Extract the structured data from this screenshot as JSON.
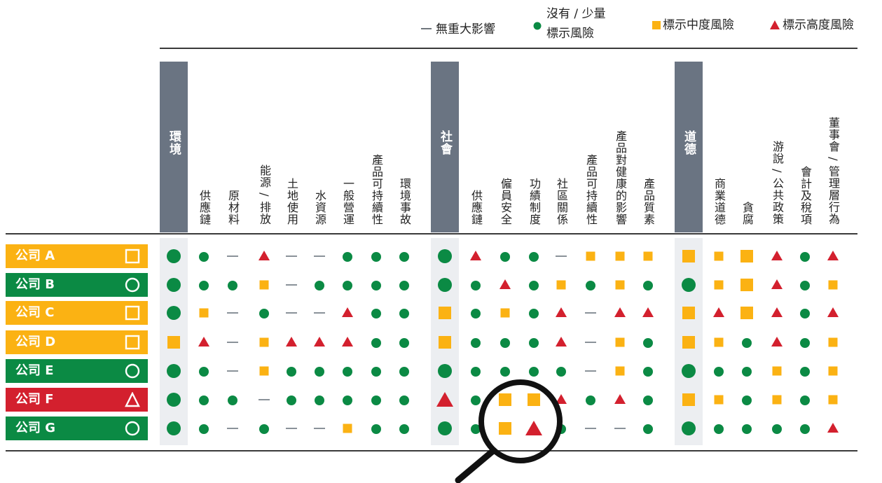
{
  "colors": {
    "green": "#0b8a44",
    "amber": "#fbb213",
    "red": "#d3202e",
    "dash": "#8a9299",
    "category": "#6a7482",
    "category_light": "#eceef1"
  },
  "legend": {
    "none_label": "無重大影響",
    "low_label_line1": "沒有 / 少量",
    "low_label_line2": "標示風險",
    "medium_label": "標示中度風險",
    "high_label": "標示高度風險"
  },
  "columns": [
    {
      "label": "環境",
      "category": true
    },
    {
      "label": "供應鏈"
    },
    {
      "label": "原材料"
    },
    {
      "label": "能源 / 排放"
    },
    {
      "label": "土地使用"
    },
    {
      "label": "水資源"
    },
    {
      "label": "一般營運"
    },
    {
      "label": "產品可持續性"
    },
    {
      "label": "環境事故"
    },
    {
      "label": "社會",
      "category": true
    },
    {
      "label": "供應鏈"
    },
    {
      "label": "僱員安全"
    },
    {
      "label": "功績制度"
    },
    {
      "label": "社區關係"
    },
    {
      "label": "產品可持續性"
    },
    {
      "label": "產品對健康的影響"
    },
    {
      "label": "產品質素"
    },
    {
      "label": "道德",
      "category": true
    },
    {
      "label": "商業道德"
    },
    {
      "label": "貪腐"
    },
    {
      "label": "游說 / 公共政策"
    },
    {
      "label": "會計及稅項"
    },
    {
      "label": "董事會 / 管理層行為"
    }
  ],
  "rows": [
    {
      "name": "公司 A",
      "color": "amber",
      "shape": "square",
      "cells": [
        "C",
        "c",
        "d",
        "t",
        "d",
        "d",
        "c",
        "c",
        "c",
        "C",
        "t",
        "c",
        "c",
        "d",
        "s",
        "s",
        "s",
        "S",
        "s",
        "S",
        "t",
        "c",
        "t"
      ]
    },
    {
      "name": "公司 B",
      "color": "green",
      "shape": "circle",
      "cells": [
        "C",
        "c",
        "c",
        "s",
        "d",
        "c",
        "c",
        "c",
        "c",
        "C",
        "c",
        "t",
        "c",
        "s",
        "c",
        "s",
        "c",
        "C",
        "s",
        "S",
        "t",
        "c",
        "s"
      ]
    },
    {
      "name": "公司 C",
      "color": "amber",
      "shape": "square",
      "cells": [
        "C",
        "s",
        "d",
        "c",
        "d",
        "d",
        "t",
        "c",
        "c",
        "S",
        "c",
        "s",
        "c",
        "t",
        "d",
        "t",
        "t",
        "S",
        "t",
        "S",
        "t",
        "c",
        "t"
      ]
    },
    {
      "name": "公司 D",
      "color": "amber",
      "shape": "square",
      "cells": [
        "S",
        "t",
        "d",
        "s",
        "t",
        "t",
        "t",
        "c",
        "c",
        "S",
        "c",
        "c",
        "c",
        "t",
        "d",
        "s",
        "c",
        "S",
        "s",
        "c",
        "t",
        "c",
        "s"
      ]
    },
    {
      "name": "公司 E",
      "color": "green",
      "shape": "circle",
      "cells": [
        "C",
        "c",
        "d",
        "s",
        "c",
        "c",
        "c",
        "c",
        "c",
        "C",
        "c",
        "c",
        "c",
        "c",
        "d",
        "s",
        "c",
        "C",
        "c",
        "c",
        "s",
        "c",
        "s"
      ]
    },
    {
      "name": "公司 F",
      "color": "red",
      "shape": "triangle",
      "cells": [
        "C",
        "c",
        "c",
        "d",
        "c",
        "c",
        "c",
        "c",
        "c",
        "T",
        "c",
        "S",
        "S",
        "t",
        "c",
        "t",
        "c",
        "S",
        "s",
        "c",
        "s",
        "c",
        "s"
      ]
    },
    {
      "name": "公司 G",
      "color": "green",
      "shape": "circle",
      "cells": [
        "C",
        "c",
        "d",
        "c",
        "d",
        "d",
        "s",
        "c",
        "c",
        "C",
        "c",
        "S",
        "T",
        "c",
        "d",
        "d",
        "c",
        "C",
        "c",
        "c",
        "c",
        "c",
        "t"
      ]
    }
  ]
}
